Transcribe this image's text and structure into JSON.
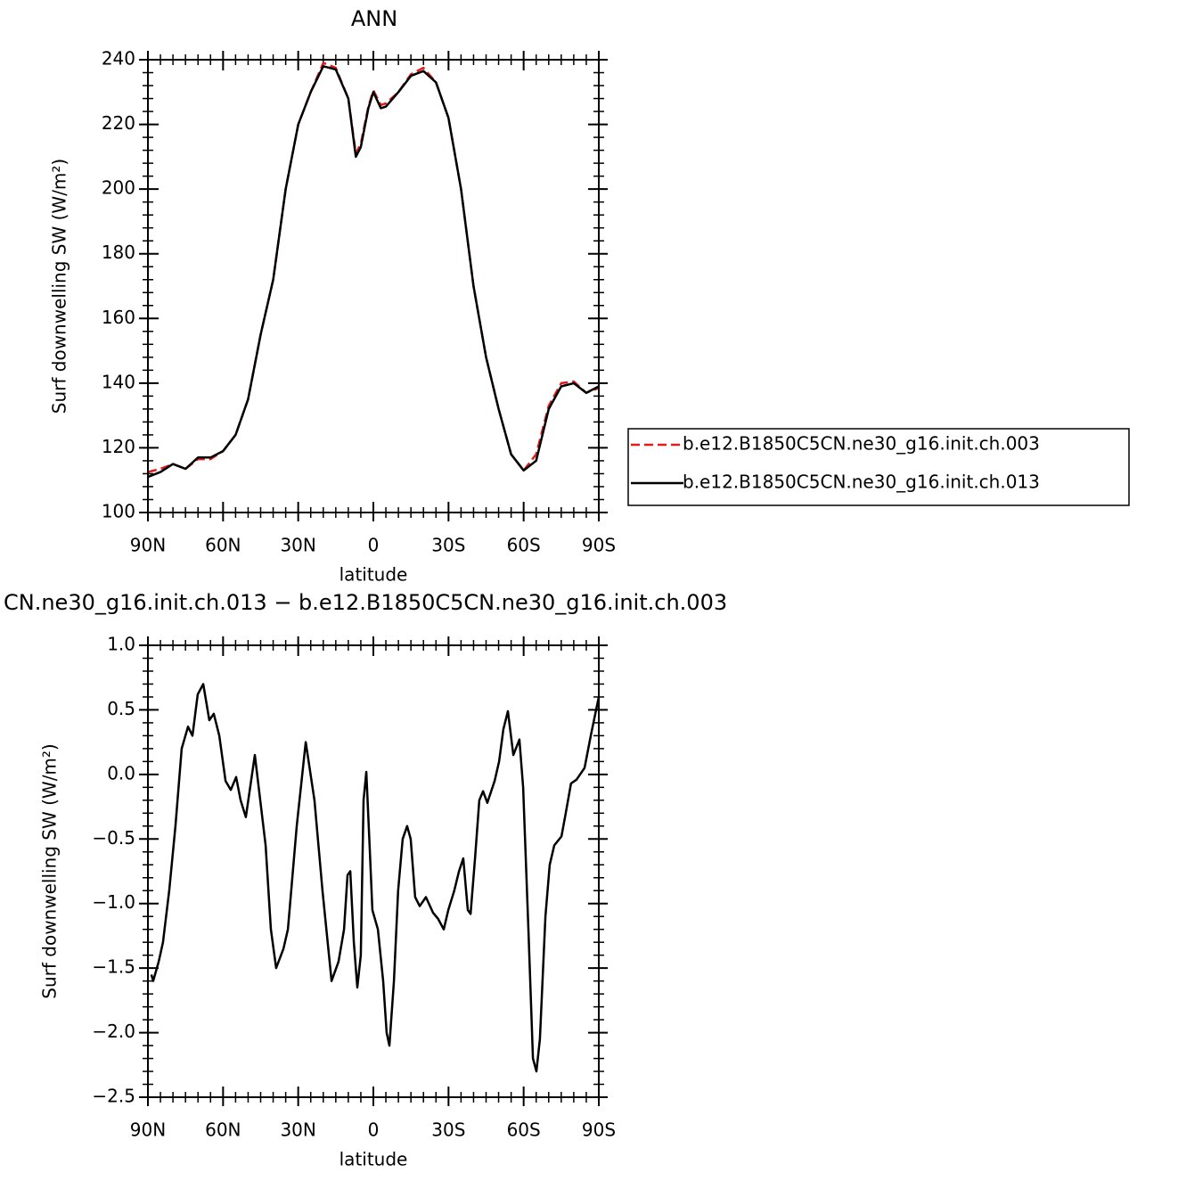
{
  "chart_data": [
    {
      "type": "line",
      "title": "ANN",
      "xlabel": "latitude",
      "ylabel": "Surf downwelling SW (W/m²)",
      "x": [
        90,
        85,
        80,
        75,
        70,
        65,
        60,
        55,
        50,
        45,
        40,
        35,
        30,
        25,
        20,
        15,
        10,
        7,
        5,
        2,
        0,
        -3,
        -5,
        -10,
        -15,
        -20,
        -25,
        -30,
        -35,
        -40,
        -45,
        -50,
        -55,
        -60,
        -65,
        -70,
        -75,
        -80,
        -85,
        -90
      ],
      "series": [
        {
          "name": "b.e12.B1850C5CN.ne30_g16.init.ch.003",
          "color": "#e41a1c",
          "dash": true,
          "values": [
            112.5,
            113.5,
            115,
            113.5,
            116.5,
            116.5,
            119,
            124,
            135,
            155,
            172,
            200,
            220,
            230,
            239,
            237.5,
            228,
            211,
            214,
            225.5,
            230.5,
            226,
            226.5,
            230,
            235.5,
            237.5,
            233,
            222,
            200,
            170,
            148,
            132,
            118,
            113,
            118,
            133,
            140,
            140.5,
            137,
            138.5
          ]
        },
        {
          "name": "b.e12.B1850C5CN.ne30_g16.init.ch.013",
          "color": "#000000",
          "dash": false,
          "values": [
            111,
            112.5,
            115,
            113.5,
            117,
            117,
            119,
            124,
            135,
            155,
            172,
            200,
            220,
            230,
            238,
            237,
            228,
            210,
            213,
            225,
            230,
            225,
            225.5,
            230,
            235,
            236.5,
            233,
            222,
            200,
            170,
            148,
            132,
            118,
            113,
            116,
            132,
            139,
            140,
            137,
            139
          ]
        }
      ],
      "xlim": [
        90,
        -90
      ],
      "xticks": [
        {
          "value": 90,
          "label": "90N"
        },
        {
          "value": 60,
          "label": "60N"
        },
        {
          "value": 30,
          "label": "30N"
        },
        0,
        {
          "value": -30,
          "label": "30S"
        },
        {
          "value": -60,
          "label": "60S"
        },
        {
          "value": -90,
          "label": "90S"
        }
      ],
      "ylim": [
        100,
        240
      ],
      "yticks": [
        100,
        120,
        140,
        160,
        180,
        200,
        220,
        240
      ],
      "legend": "right"
    },
    {
      "type": "line",
      "title": "CN.ne30_g16.init.ch.013 − b.e12.B1850C5CN.ne30_g16.init.ch.003",
      "xlabel": "latitude",
      "ylabel": "Surf downwelling SW (W/m²)",
      "x": [
        88.6,
        87.9,
        85.7,
        84,
        81.5,
        79,
        76.5,
        74,
        72.2,
        70.1,
        67.9,
        65.5,
        63.7,
        61.5,
        59,
        56.9,
        54.8,
        53,
        50.9,
        47.3,
        43,
        40.9,
        38.8,
        35.9,
        34.1,
        30.6,
        27,
        23.5,
        20.3,
        16.7,
        13.9,
        11.7,
        10.3,
        9.2,
        7.8,
        6.4,
        5,
        3.9,
        2.8,
        1.4,
        0.4,
        -1.8,
        -3.9,
        -5.3,
        -6.4,
        -8.2,
        -9.9,
        -11.7,
        -13.5,
        -14.9,
        -16.7,
        -18.5,
        -21,
        -23.8,
        -25.9,
        -28.1,
        -29.9,
        -32.3,
        -34.2,
        -35.9,
        -37.7,
        -38.8,
        -40.6,
        -42.3,
        -43.8,
        -45.5,
        -48.4,
        -50.2,
        -51.9,
        -53.7,
        -55.9,
        -58.3,
        -59.8,
        -61.9,
        -63.7,
        -65.1,
        -66.5,
        -68.7,
        -70.4,
        -72.2,
        -75.1,
        -76.8,
        -78.9,
        -81.1,
        -84.3,
        -86.8,
        -90
      ],
      "series": [
        {
          "color": "#000000",
          "dash": false,
          "values": [
            -1.55,
            -1.6,
            -1.45,
            -1.3,
            -0.9,
            -0.4,
            0.2,
            0.37,
            0.3,
            0.62,
            0.7,
            0.42,
            0.47,
            0.3,
            -0.05,
            -0.12,
            -0.02,
            -0.2,
            -0.33,
            0.15,
            -0.55,
            -1.2,
            -1.5,
            -1.35,
            -1.2,
            -0.4,
            0.25,
            -0.2,
            -0.9,
            -1.6,
            -1.45,
            -1.2,
            -0.78,
            -0.75,
            -1.3,
            -1.65,
            -1.4,
            -0.2,
            0.02,
            -0.6,
            -1.05,
            -1.2,
            -1.6,
            -2.0,
            -2.1,
            -1.6,
            -0.9,
            -0.5,
            -0.4,
            -0.5,
            -0.95,
            -1.02,
            -0.95,
            -1.07,
            -1.12,
            -1.2,
            -1.05,
            -0.9,
            -0.75,
            -0.65,
            -1.05,
            -1.08,
            -0.65,
            -0.2,
            -0.13,
            -0.22,
            -0.05,
            0.1,
            0.35,
            0.49,
            0.15,
            0.27,
            -0.1,
            -1.2,
            -2.2,
            -2.3,
            -2.05,
            -1.1,
            -0.7,
            -0.55,
            -0.48,
            -0.3,
            -0.07,
            -0.04,
            0.05,
            0.3,
            0.6
          ]
        }
      ],
      "xlim": [
        90,
        -90
      ],
      "xticks": [
        {
          "value": 90,
          "label": "90N"
        },
        {
          "value": 60,
          "label": "60N"
        },
        {
          "value": 30,
          "label": "30N"
        },
        0,
        {
          "value": -30,
          "label": "30S"
        },
        {
          "value": -60,
          "label": "60S"
        },
        {
          "value": -90,
          "label": "90S"
        }
      ],
      "ylim": [
        -2.5,
        1.0
      ],
      "yticks": [
        {
          "value": -2.5,
          "label": "−2.5"
        },
        {
          "value": -2.0,
          "label": "−2.0"
        },
        {
          "value": -1.5,
          "label": "−1.5"
        },
        {
          "value": -1.0,
          "label": "−1.0"
        },
        {
          "value": -0.5,
          "label": "−0.5"
        },
        {
          "value": 0,
          "label": "0.0"
        },
        0.5,
        {
          "value": 1.0,
          "label": "1.0"
        }
      ]
    }
  ]
}
